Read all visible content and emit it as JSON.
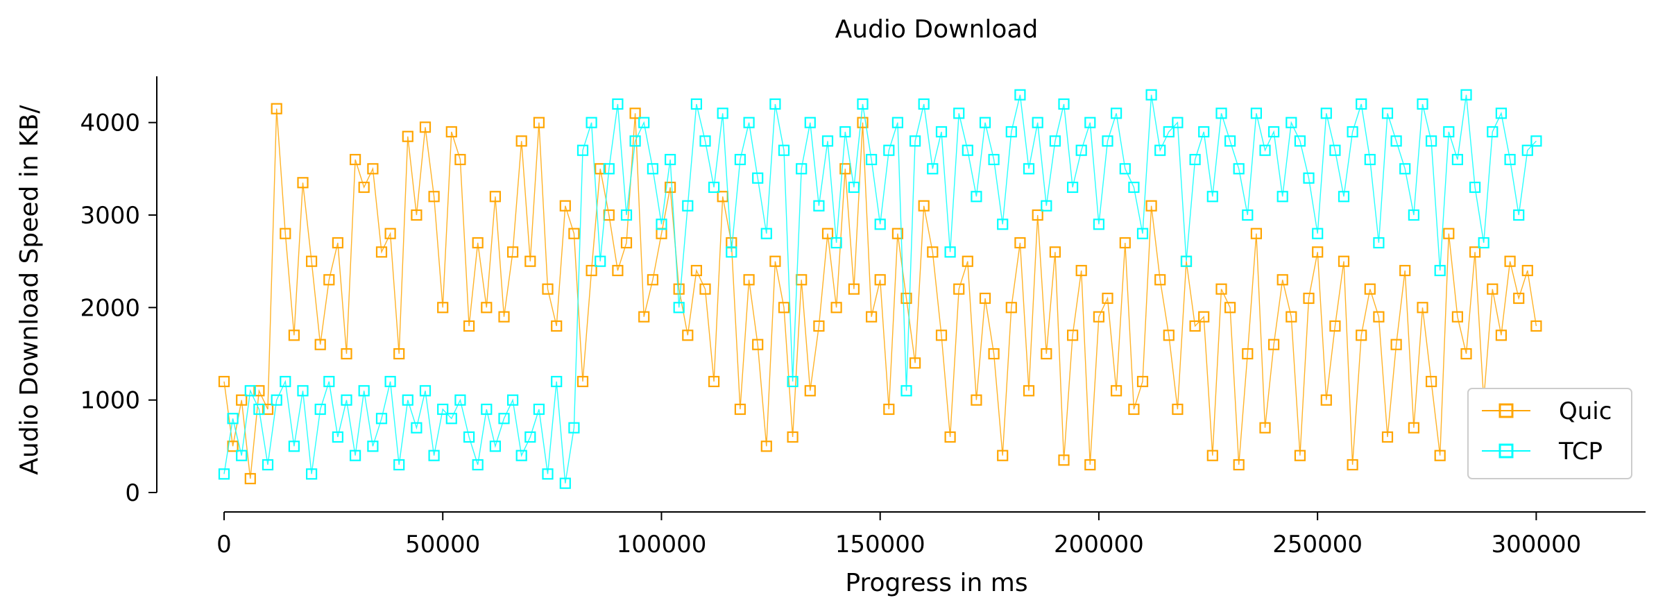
{
  "chart_data": {
    "type": "line",
    "title": "Audio Download",
    "xlabel": "Progress in ms",
    "ylabel": "Audio Download Speed in KB/",
    "xlim": [
      0,
      325000
    ],
    "ylim": [
      0,
      4500
    ],
    "xticks": [
      0,
      50000,
      100000,
      150000,
      200000,
      250000,
      300000
    ],
    "yticks": [
      0,
      1000,
      2000,
      3000,
      4000
    ],
    "grid": false,
    "legend_position": "lower-right",
    "marker": "square",
    "series": [
      {
        "name": "Quic",
        "color": "#FFA500",
        "x": [
          0,
          2000,
          4000,
          6000,
          8000,
          10000,
          12000,
          14000,
          16000,
          18000,
          20000,
          22000,
          24000,
          26000,
          28000,
          30000,
          32000,
          34000,
          36000,
          38000,
          40000,
          42000,
          44000,
          46000,
          48000,
          50000,
          52000,
          54000,
          56000,
          58000,
          60000,
          62000,
          64000,
          66000,
          68000,
          70000,
          72000,
          74000,
          76000,
          78000,
          80000,
          82000,
          84000,
          86000,
          88000,
          90000,
          92000,
          94000,
          96000,
          98000,
          100000,
          102000,
          104000,
          106000,
          108000,
          110000,
          112000,
          114000,
          116000,
          118000,
          120000,
          122000,
          124000,
          126000,
          128000,
          130000,
          132000,
          134000,
          136000,
          138000,
          140000,
          142000,
          144000,
          146000,
          148000,
          150000,
          152000,
          154000,
          156000,
          158000,
          160000,
          162000,
          164000,
          166000,
          168000,
          170000,
          172000,
          174000,
          176000,
          178000,
          180000,
          182000,
          184000,
          186000,
          188000,
          190000,
          192000,
          194000,
          196000,
          198000,
          200000,
          202000,
          204000,
          206000,
          208000,
          210000,
          212000,
          214000,
          216000,
          218000,
          220000,
          222000,
          224000,
          226000,
          228000,
          230000,
          232000,
          234000,
          236000,
          238000,
          240000,
          242000,
          244000,
          246000,
          248000,
          250000,
          252000,
          254000,
          256000,
          258000,
          260000,
          262000,
          264000,
          266000,
          268000,
          270000,
          272000,
          274000,
          276000,
          278000,
          280000,
          282000,
          284000,
          286000,
          288000,
          290000,
          292000,
          294000,
          296000,
          298000,
          300000
        ],
        "y": [
          1200,
          500,
          1000,
          150,
          1100,
          900,
          4150,
          2800,
          1700,
          3350,
          2500,
          1600,
          2300,
          2700,
          1500,
          3600,
          3300,
          3500,
          2600,
          2800,
          1500,
          3850,
          3000,
          3950,
          3200,
          2000,
          3900,
          3600,
          1800,
          2700,
          2000,
          3200,
          1900,
          2600,
          3800,
          2500,
          4000,
          2200,
          1800,
          3100,
          2800,
          1200,
          2400,
          3500,
          3000,
          2400,
          2700,
          4100,
          1900,
          2300,
          2800,
          3300,
          2200,
          1700,
          2400,
          2200,
          1200,
          3200,
          2700,
          900,
          2300,
          1600,
          500,
          2500,
          2000,
          600,
          2300,
          1100,
          1800,
          2800,
          2000,
          3500,
          2200,
          4000,
          1900,
          2300,
          900,
          2800,
          2100,
          1400,
          3100,
          2600,
          1700,
          600,
          2200,
          2500,
          1000,
          2100,
          1500,
          400,
          2000,
          2700,
          1100,
          3000,
          1500,
          2600,
          350,
          1700,
          2400,
          300,
          1900,
          2100,
          1100,
          2700,
          900,
          1200,
          3100,
          2300,
          1700,
          900,
          2500,
          1800,
          1900,
          400,
          2200,
          2000,
          300,
          1500,
          2800,
          700,
          1600,
          2300,
          1900,
          400,
          2100,
          2600,
          1000,
          1800,
          2500,
          300,
          1700,
          2200,
          1900,
          600,
          1600,
          2400,
          700,
          2000,
          1200,
          400,
          2800,
          1900,
          1500,
          2600,
          1000,
          2200,
          1700,
          2500,
          2100,
          2400,
          1800
        ],
        "x_dense": true
      },
      {
        "name": "TCP",
        "color": "#00FFFF",
        "x": [
          0,
          2000,
          4000,
          6000,
          8000,
          10000,
          12000,
          14000,
          16000,
          18000,
          20000,
          22000,
          24000,
          26000,
          28000,
          30000,
          32000,
          34000,
          36000,
          38000,
          40000,
          42000,
          44000,
          46000,
          48000,
          50000,
          52000,
          54000,
          56000,
          58000,
          60000,
          62000,
          64000,
          66000,
          68000,
          70000,
          72000,
          74000,
          76000,
          78000,
          80000,
          82000,
          84000,
          86000,
          88000,
          90000,
          92000,
          94000,
          96000,
          98000,
          100000,
          102000,
          104000,
          106000,
          108000,
          110000,
          112000,
          114000,
          116000,
          118000,
          120000,
          122000,
          124000,
          126000,
          128000,
          130000,
          132000,
          134000,
          136000,
          138000,
          140000,
          142000,
          144000,
          146000,
          148000,
          150000,
          152000,
          154000,
          156000,
          158000,
          160000,
          162000,
          164000,
          166000,
          168000,
          170000,
          172000,
          174000,
          176000,
          178000,
          180000,
          182000,
          184000,
          186000,
          188000,
          190000,
          192000,
          194000,
          196000,
          198000,
          200000,
          202000,
          204000,
          206000,
          208000,
          210000,
          212000,
          214000,
          216000,
          218000,
          220000,
          222000,
          224000,
          226000,
          228000,
          230000,
          232000,
          234000,
          236000,
          238000,
          240000,
          242000,
          244000,
          246000,
          248000,
          250000,
          252000,
          254000,
          256000,
          258000,
          260000,
          262000,
          264000,
          266000,
          268000,
          270000,
          272000,
          274000,
          276000,
          278000,
          280000,
          282000,
          284000,
          286000,
          288000,
          290000,
          292000,
          294000,
          296000,
          298000,
          300000
        ],
        "y": [
          200,
          800,
          400,
          1100,
          900,
          300,
          1000,
          1200,
          500,
          1100,
          200,
          900,
          1200,
          600,
          1000,
          400,
          1100,
          500,
          800,
          1200,
          300,
          1000,
          700,
          1100,
          400,
          900,
          800,
          1000,
          600,
          300,
          900,
          500,
          800,
          1000,
          400,
          600,
          900,
          200,
          1200,
          100,
          700,
          3700,
          4000,
          2500,
          3500,
          4200,
          3000,
          3800,
          4000,
          3500,
          2900,
          3600,
          2000,
          3100,
          4200,
          3800,
          3300,
          4100,
          2600,
          3600,
          4000,
          3400,
          2800,
          4200,
          3700,
          1200,
          3500,
          4000,
          3100,
          3800,
          2700,
          3900,
          3300,
          4200,
          3600,
          2900,
          3700,
          4000,
          1100,
          3800,
          4200,
          3500,
          3900,
          2600,
          4100,
          3700,
          3200,
          4000,
          3600,
          2900,
          3900,
          4300,
          3500,
          4000,
          3100,
          3800,
          4200,
          3300,
          3700,
          4000,
          2900,
          3800,
          4100,
          3500,
          3300,
          2800,
          4300,
          3700,
          3900,
          4000,
          2500,
          3600,
          3900,
          3200,
          4100,
          3800,
          3500,
          3000,
          4100,
          3700,
          3900,
          3200,
          4000,
          3800,
          3400,
          2800,
          4100,
          3700,
          3200,
          3900,
          4200,
          3600,
          2700,
          4100,
          3800,
          3500,
          3000,
          4200,
          3800,
          2400,
          3900,
          3600,
          4300,
          3300,
          2700,
          3900,
          4100,
          3600,
          3000,
          3700,
          3800
        ],
        "x_dense": true
      }
    ]
  }
}
